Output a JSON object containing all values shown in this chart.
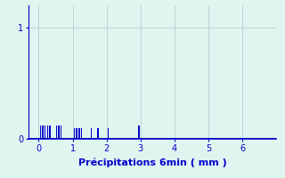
{
  "title": "",
  "xlabel": "Précipitations 6min ( mm )",
  "ylabel": "",
  "background_color": "#dff5f0",
  "bar_color": "#0000cc",
  "bar_positions": [
    0.05,
    0.12,
    0.19,
    0.26,
    0.33,
    0.52,
    0.59,
    0.66,
    1.05,
    1.12,
    1.19,
    1.26,
    1.55,
    1.75,
    2.05,
    2.95
  ],
  "bar_heights": [
    0.12,
    0.12,
    0.12,
    0.12,
    0.12,
    0.12,
    0.12,
    0.12,
    0.1,
    0.1,
    0.1,
    0.1,
    0.1,
    0.1,
    0.1,
    0.12
  ],
  "bar_width": 0.04,
  "xlim": [
    -0.3,
    7.0
  ],
  "ylim": [
    0,
    1.2
  ],
  "yticks": [
    0,
    1
  ],
  "xticks": [
    0,
    1,
    2,
    3,
    4,
    5,
    6
  ],
  "grid_color": "#b0c8c8",
  "axis_color": "#0000cc",
  "tick_color": "#0000cc",
  "label_color": "#0000cc",
  "label_fontsize": 8,
  "tick_fontsize": 7
}
